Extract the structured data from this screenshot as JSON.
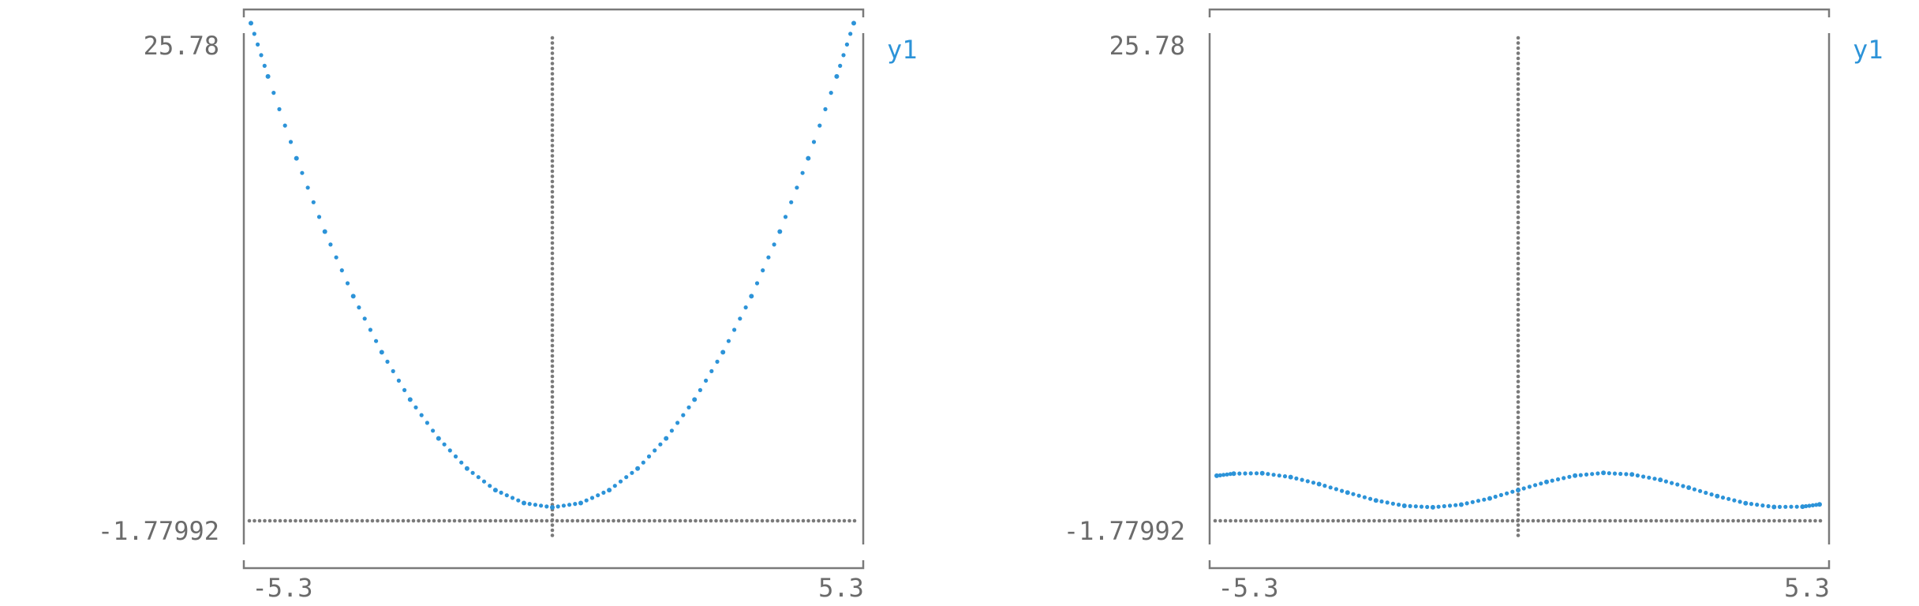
{
  "colors": {
    "series": "#2c93d8",
    "frame": "#7a7a7a",
    "zero_axis": "#7a7a7a",
    "tick_text": "#6b6b6b",
    "background": "#ffffff"
  },
  "chart_data": [
    {
      "type": "scatter",
      "title": "",
      "xlabel": "",
      "ylabel": "",
      "xlim": [
        -5.3,
        5.3
      ],
      "ylim": [
        -1.77992,
        25.78
      ],
      "x_tick_labels": [
        "-5.3",
        "5.3"
      ],
      "y_tick_labels": [
        "25.78",
        "-1.77992"
      ],
      "zero_lines": true,
      "legend_position": "top-right",
      "grid": false,
      "series": [
        {
          "name": "y1",
          "function": "x^2 - 1",
          "x": [
            -5.3,
            -5.0,
            -4.5,
            -4.0,
            -3.5,
            -3.0,
            -2.5,
            -2.0,
            -1.5,
            -1.0,
            -0.5,
            0.0,
            0.5,
            1.0,
            1.5,
            2.0,
            2.5,
            3.0,
            3.5,
            4.0,
            4.5,
            5.0,
            5.3
          ],
          "y": [
            27.09,
            24.0,
            19.25,
            15.0,
            11.25,
            8.0,
            5.25,
            3.0,
            1.25,
            0.0,
            -0.75,
            -1.0,
            -0.75,
            0.0,
            1.25,
            3.0,
            5.25,
            8.0,
            11.25,
            15.0,
            19.25,
            24.0,
            27.09
          ]
        }
      ]
    },
    {
      "type": "scatter",
      "title": "",
      "xlabel": "",
      "ylabel": "",
      "xlim": [
        -5.3,
        5.3
      ],
      "ylim": [
        -1.77992,
        25.78
      ],
      "x_tick_labels": [
        "-5.3",
        "5.3"
      ],
      "y_tick_labels": [
        "25.78",
        "-1.77992"
      ],
      "zero_lines": true,
      "legend_position": "top-right",
      "grid": false,
      "series": [
        {
          "name": "y1",
          "function": "sin(x)",
          "x": [
            -5.3,
            -5.0,
            -4.5,
            -4.0,
            -3.5,
            -3.0,
            -2.5,
            -2.0,
            -1.5,
            -1.0,
            -0.5,
            0.0,
            0.5,
            1.0,
            1.5,
            2.0,
            2.5,
            3.0,
            3.5,
            4.0,
            4.5,
            5.0,
            5.3
          ],
          "y": [
            0.832,
            0.959,
            0.978,
            0.757,
            0.351,
            -0.141,
            -0.598,
            -0.909,
            -0.997,
            -0.841,
            -0.479,
            0.0,
            0.479,
            0.841,
            0.997,
            0.909,
            0.598,
            0.141,
            -0.351,
            -0.757,
            -0.978,
            -0.959,
            -0.832
          ]
        }
      ]
    }
  ]
}
